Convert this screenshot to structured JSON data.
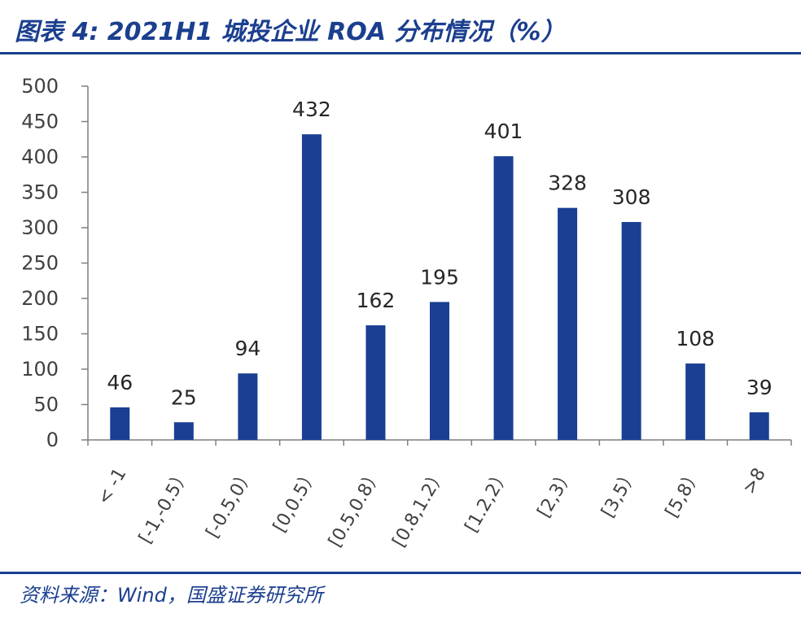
{
  "header": {
    "title": "图表 4:  2021H1 城投企业 ROA 分布情况（%）"
  },
  "footer": {
    "source": "资料来源：Wind，国盛证券研究所"
  },
  "colors": {
    "accent": "#1b3f8f",
    "bar": "#1a3f93",
    "axis": "#7f7f7f"
  },
  "chart_data": {
    "type": "bar",
    "title": "",
    "xlabel": "",
    "ylabel": "",
    "categories": [
      "< -1",
      "[-1,-0.5）",
      "[-0.5,0）",
      "[0,0.5）",
      "[0.5,0.8）",
      "[0.8,1.2）",
      "[1.2,2）",
      "[2,3）",
      "[3,5）",
      "[5,8）",
      ">8"
    ],
    "values": [
      46,
      25,
      94,
      432,
      162,
      195,
      401,
      328,
      308,
      108,
      39
    ],
    "ylim": [
      0,
      500
    ],
    "yticks": [
      0,
      50,
      100,
      150,
      200,
      250,
      300,
      350,
      400,
      450,
      500
    ],
    "ytick_labels": [
      "0",
      "50",
      "100",
      "150",
      "200",
      "250",
      "300",
      "350",
      "400",
      "450",
      "500"
    ],
    "data_labels": [
      "46",
      "25",
      "94",
      "432",
      "162",
      "195",
      "401",
      "328",
      "308",
      "108",
      "39"
    ],
    "grid": false,
    "legend": "none"
  }
}
